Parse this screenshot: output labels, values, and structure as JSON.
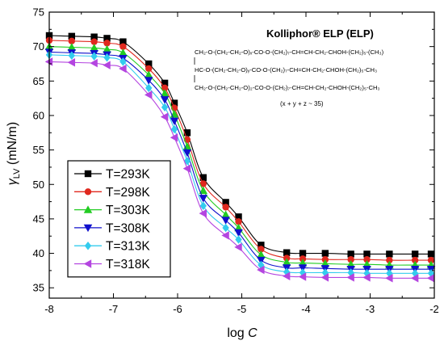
{
  "chart_data": {
    "type": "scatter",
    "xlabel": {
      "prefix": "log ",
      "var": "C"
    },
    "ylabel": {
      "sym": "γ",
      "sub": "LV",
      "rest": " (mN/m)"
    },
    "xlim": [
      -8,
      -2
    ],
    "ylim": [
      33.5,
      75
    ],
    "xticks": [
      -8,
      -7,
      -6,
      -5,
      -4,
      -3,
      -2
    ],
    "xtick_labels": [
      "-8",
      "-7",
      "-6",
      "-5",
      "-4",
      "-3",
      "-2"
    ],
    "yticks": [
      35,
      40,
      45,
      50,
      55,
      60,
      65,
      70,
      75
    ],
    "ytick_labels": [
      "35",
      "40",
      "45",
      "50",
      "55",
      "60",
      "65",
      "70",
      "75"
    ],
    "legend_position": "bottom-left",
    "x": [
      -8.0,
      -7.65,
      -7.3,
      -7.1,
      -6.85,
      -6.45,
      -6.2,
      -6.05,
      -5.85,
      -5.6,
      -5.25,
      -5.05,
      -4.7,
      -4.3,
      -4.05,
      -3.7,
      -3.3,
      -3.05,
      -2.7,
      -2.3,
      -2.05
    ],
    "series": [
      {
        "name": "T=293K",
        "marker": "square",
        "color": "#000000",
        "values": [
          71.6,
          71.5,
          71.4,
          71.2,
          70.7,
          67.5,
          64.7,
          61.8,
          57.5,
          51.0,
          47.4,
          45.3,
          41.2,
          40.1,
          40.0,
          40.0,
          39.9,
          39.9,
          39.9,
          39.9,
          39.9
        ]
      },
      {
        "name": "T=298K",
        "marker": "circle",
        "color": "#e0281e",
        "values": [
          70.9,
          70.8,
          70.7,
          70.5,
          70.0,
          66.8,
          64.0,
          61.1,
          56.5,
          50.1,
          46.7,
          44.6,
          40.6,
          39.3,
          39.2,
          39.1,
          39.1,
          39.1,
          39.0,
          39.0,
          39.0
        ]
      },
      {
        "name": "T=303K",
        "marker": "triangle-up",
        "color": "#22cc22",
        "values": [
          70.0,
          69.9,
          69.8,
          69.6,
          69.1,
          65.9,
          63.2,
          60.2,
          55.5,
          49.1,
          45.6,
          43.7,
          39.8,
          38.7,
          38.6,
          38.5,
          38.4,
          38.4,
          38.3,
          38.3,
          38.3
        ]
      },
      {
        "name": "T=308K",
        "marker": "triangle-down",
        "color": "#1010cc",
        "values": [
          69.2,
          69.1,
          69.0,
          68.8,
          68.3,
          65.1,
          62.3,
          59.2,
          54.6,
          48.0,
          44.8,
          43.0,
          39.0,
          37.9,
          37.9,
          37.8,
          37.7,
          37.7,
          37.7,
          37.7,
          37.7
        ]
      },
      {
        "name": "T=313K",
        "marker": "diamond",
        "color": "#33ccee",
        "values": [
          68.8,
          68.7,
          68.6,
          68.4,
          67.8,
          64.0,
          61.2,
          58.0,
          53.4,
          46.9,
          43.7,
          42.0,
          38.3,
          37.3,
          37.2,
          37.2,
          37.2,
          37.1,
          37.1,
          37.1,
          37.1
        ]
      },
      {
        "name": "T=318K",
        "marker": "triangle-left",
        "color": "#b445e0",
        "values": [
          67.8,
          67.7,
          67.6,
          67.3,
          66.8,
          63.0,
          59.8,
          56.8,
          52.3,
          45.8,
          42.6,
          40.9,
          37.6,
          36.7,
          36.6,
          36.5,
          36.5,
          36.5,
          36.4,
          36.4,
          36.4
        ]
      }
    ],
    "annotation": {
      "title": "Kolliphor® ELP (ELP)",
      "structure_lines": [
        "CH₂-O-(CH₂-CH₂-O)ₓ-CO-O-(CH₂)₇-CH=CH-CH₂-CHOH-(CH₂)₅-(CH₃)",
        "HC-O-(CH₂-CH₂-O)ᵧ-CO-O-(CH₂)₇-CH=CH-CH₂-CHOH-(CH₂)₅-CH₃",
        "CH₂-O-(CH₂-CH₂-O)₂-CO-O-(CH₂)₇-CH=CH-CH₂-CHOH-(CH₂)₅-CH₃"
      ],
      "note": "(x + y + z ~ 35)"
    }
  }
}
